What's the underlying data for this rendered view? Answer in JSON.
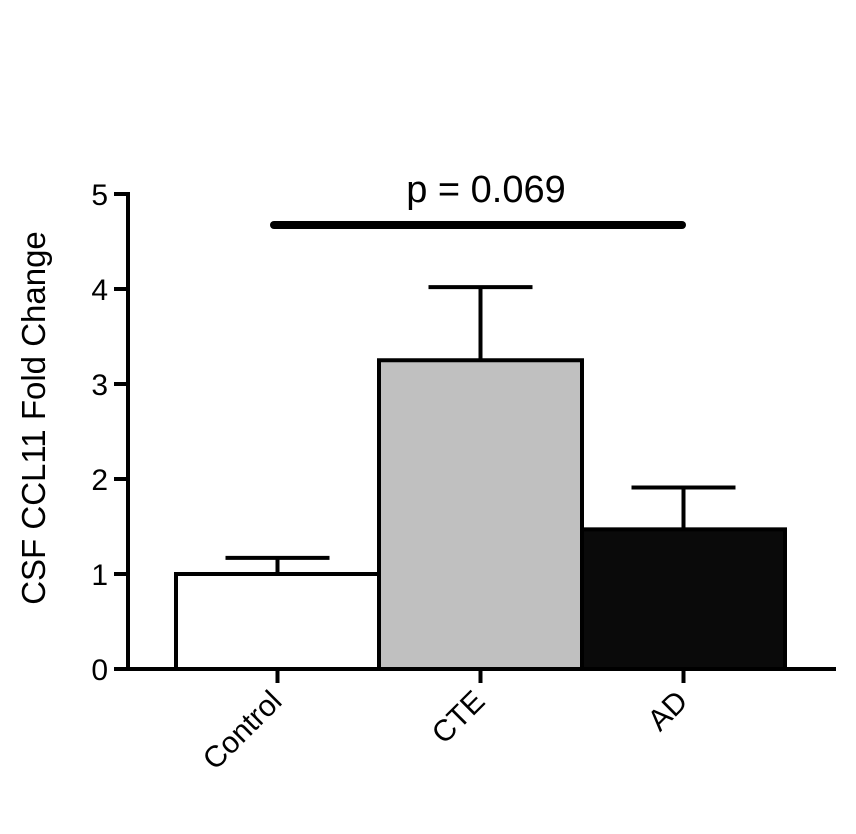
{
  "chart_data": {
    "type": "bar",
    "categories": [
      "Control",
      "CTE",
      "AD"
    ],
    "values": [
      1.0,
      3.25,
      1.47
    ],
    "errors": [
      0.17,
      0.77,
      0.44
    ],
    "bar_colors": [
      "#ffffff",
      "#c0c0c0",
      "#0a0a0a"
    ],
    "ylabel": "CSF CCL11 Fold Change",
    "xlabel": "",
    "ylim": [
      0,
      5
    ],
    "yticks": [
      "0",
      "1",
      "2",
      "3",
      "4",
      "5"
    ],
    "annotation": {
      "text": "p = 0.069",
      "from_category": "Control",
      "to_category": "AD"
    },
    "grid": false
  }
}
